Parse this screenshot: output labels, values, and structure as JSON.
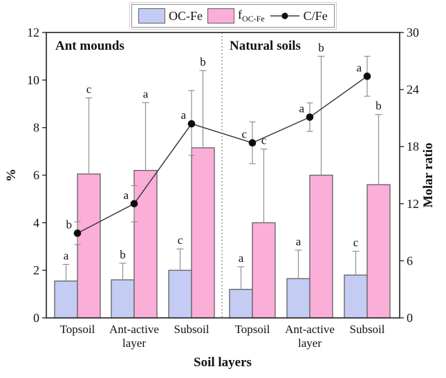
{
  "figure": {
    "panel_titles": [
      "Ant mounds",
      "Natural soils"
    ],
    "legend": [
      {
        "label": "OC-Fe",
        "type": "swatch"
      },
      {
        "label_base": "f",
        "label_sub": "OC-Fe",
        "type": "swatch"
      },
      {
        "label": "C/Fe",
        "type": "line-marker"
      }
    ]
  },
  "colors": {
    "ocfe_fill": "#c4ccf4",
    "focfe_fill": "#fbaed8",
    "bar_border": "#5f5f5f",
    "line": "#3a3a3a",
    "point": "#0d0d0d",
    "error_bar": "#8f8f8f",
    "frame": "#2b2b2b",
    "divider": "#6e6e6e"
  },
  "chart_data": {
    "type": "bar",
    "subtype": "grouped bars with overlaid line, dual y-axes, upper error bars, significance letters",
    "panels": [
      "Ant mounds",
      "Natural soils"
    ],
    "categories": [
      {
        "lines": [
          "Topsoil"
        ],
        "panel": "Ant mounds"
      },
      {
        "lines": [
          "Ant-active",
          "layer"
        ],
        "panel": "Ant mounds"
      },
      {
        "lines": [
          "Subsoil"
        ],
        "panel": "Ant mounds"
      },
      {
        "lines": [
          "Topsoil"
        ],
        "panel": "Natural soils"
      },
      {
        "lines": [
          "Ant-active",
          "layer"
        ],
        "panel": "Natural soils"
      },
      {
        "lines": [
          "Subsoil"
        ],
        "panel": "Natural soils"
      }
    ],
    "series": [
      {
        "name": "OC-Fe",
        "type": "bar",
        "axis": "left",
        "values": [
          1.55,
          1.6,
          2.0,
          1.2,
          1.65,
          1.8
        ],
        "err_up": [
          0.7,
          0.7,
          0.9,
          0.95,
          1.2,
          1.0
        ],
        "letters": [
          "a",
          "b",
          "c",
          "a",
          "a",
          "c"
        ]
      },
      {
        "name": "fOC-Fe",
        "type": "bar",
        "axis": "left",
        "values": [
          6.05,
          6.2,
          7.15,
          4.0,
          6.0,
          5.6
        ],
        "err_up": [
          3.2,
          2.85,
          3.25,
          3.1,
          5.0,
          2.95
        ],
        "letters": [
          "c",
          "a",
          "b",
          "c",
          "b",
          "b"
        ]
      },
      {
        "name": "C/Fe",
        "type": "line",
        "axis": "right",
        "values": [
          8.9,
          12.0,
          20.4,
          18.4,
          21.1,
          25.4
        ],
        "err_up": [
          1.2,
          1.9,
          3.5,
          2.2,
          1.5,
          2.1
        ],
        "err_down": [
          1.2,
          1.9,
          3.3,
          2.2,
          1.5,
          2.1
        ],
        "letters": [
          "b",
          "a",
          "a",
          "c",
          "a",
          "a"
        ]
      }
    ],
    "left_axis": {
      "label": "%",
      "min": 0,
      "max": 12,
      "ticks": [
        0,
        2,
        4,
        6,
        8,
        10,
        12
      ]
    },
    "right_axis": {
      "label": "Molar ratio",
      "min": 0,
      "max": 30,
      "ticks": [
        0,
        6,
        12,
        18,
        24,
        30
      ]
    },
    "x_axis_label": "Soil layers",
    "grid": false,
    "legend_position": "top center",
    "divider": "dotted vertical line between panels"
  }
}
